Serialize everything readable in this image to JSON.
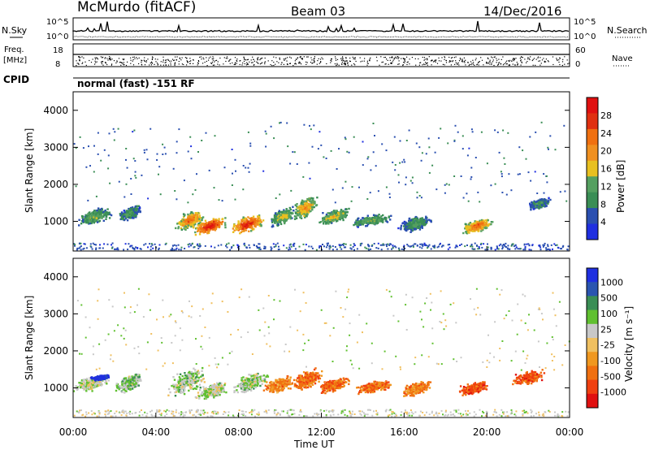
{
  "header": {
    "radar": "McMurdo (fitACF)",
    "beam": "Beam 03",
    "date": "14/Dec/2016"
  },
  "noise_panel": {
    "left_label": "N.Sky",
    "right_label": "N.Search",
    "tick_top": "10^5",
    "tick_bottom": "10^0"
  },
  "freq_panel": {
    "left_label": "Freq.",
    "left_unit": "[MHz]",
    "left_top": "18",
    "left_bottom": "8",
    "right_label": "Nave",
    "right_top": "60",
    "right_bottom": "0"
  },
  "cpid": {
    "label": "CPID",
    "mode": "normal (fast) -151 RF"
  },
  "colors": {
    "power": [
      "#1f2fe0",
      "#2a4fb0",
      "#3a8e55",
      "#55a060",
      "#e8c020",
      "#f09020",
      "#f07010",
      "#e03010",
      "#e01010"
    ],
    "velocity": [
      "#e01010",
      "#f04010",
      "#f07010",
      "#f09820",
      "#f0c060",
      "#c8c8c8",
      "#60c030",
      "#3a8e55",
      "#2a55b0",
      "#1f2fe0"
    ]
  },
  "chart_data": [
    {
      "type": "heatmap",
      "name": "power",
      "xlabel": "",
      "ylabel": "Slant Range [km]",
      "ylim": [
        200,
        4500
      ],
      "yticks": [
        "1000",
        "2000",
        "3000",
        "4000"
      ],
      "colorbar": {
        "label": "Power [dB]",
        "ticks": [
          "4",
          "8",
          "12",
          "16",
          "20",
          "24",
          "28"
        ],
        "range": [
          0,
          32
        ]
      },
      "blobs": [
        {
          "t": 1.0,
          "r": 1150,
          "dt": 0.9,
          "dr": 220,
          "v": 12
        },
        {
          "t": 2.7,
          "r": 1250,
          "dt": 0.6,
          "dr": 200,
          "v": 10
        },
        {
          "t": 5.6,
          "r": 1050,
          "dt": 0.8,
          "dr": 260,
          "v": 20
        },
        {
          "t": 6.6,
          "r": 900,
          "dt": 0.9,
          "dr": 220,
          "v": 27
        },
        {
          "t": 8.4,
          "r": 950,
          "dt": 0.9,
          "dr": 250,
          "v": 26
        },
        {
          "t": 10.1,
          "r": 1150,
          "dt": 0.7,
          "dr": 250,
          "v": 14
        },
        {
          "t": 11.2,
          "r": 1400,
          "dt": 0.7,
          "dr": 300,
          "v": 18
        },
        {
          "t": 12.6,
          "r": 1150,
          "dt": 0.8,
          "dr": 200,
          "v": 15
        },
        {
          "t": 14.4,
          "r": 1050,
          "dt": 1.2,
          "dr": 160,
          "v": 12
        },
        {
          "t": 16.5,
          "r": 950,
          "dt": 0.9,
          "dr": 220,
          "v": 10
        },
        {
          "t": 19.5,
          "r": 900,
          "dt": 0.8,
          "dr": 200,
          "v": 22
        },
        {
          "t": 22.5,
          "r": 1500,
          "dt": 0.6,
          "dr": 150,
          "v": 9
        }
      ]
    },
    {
      "type": "heatmap",
      "name": "velocity",
      "xlabel": "Time UT",
      "ylabel": "Slant Range [km]",
      "xticks": [
        "00:00",
        "04:00",
        "08:00",
        "12:00",
        "16:00",
        "20:00",
        "00:00"
      ],
      "xlim": [
        0,
        24
      ],
      "ylim": [
        200,
        4500
      ],
      "yticks": [
        "1000",
        "2000",
        "3000",
        "4000"
      ],
      "colorbar": {
        "label": "Velocity [m s⁻¹]",
        "ticks": [
          "1000",
          "500",
          "100",
          "25",
          "-25",
          "-100",
          "-500",
          "-1000"
        ]
      },
      "blobs": [
        {
          "t": 0.9,
          "r": 1150,
          "dt": 1.0,
          "dr": 220,
          "v": 0.55
        },
        {
          "t": 1.3,
          "r": 1300,
          "dt": 0.5,
          "dr": 70,
          "v": 0.98
        },
        {
          "t": 2.7,
          "r": 1150,
          "dt": 0.8,
          "dr": 260,
          "v": 0.62
        },
        {
          "t": 5.5,
          "r": 1200,
          "dt": 1.0,
          "dr": 350,
          "v": 0.6
        },
        {
          "t": 6.7,
          "r": 950,
          "dt": 0.9,
          "dr": 230,
          "v": 0.58
        },
        {
          "t": 8.5,
          "r": 1150,
          "dt": 1.0,
          "dr": 300,
          "v": 0.6
        },
        {
          "t": 9.9,
          "r": 1100,
          "dt": 0.8,
          "dr": 220,
          "v": 0.3
        },
        {
          "t": 11.3,
          "r": 1250,
          "dt": 0.8,
          "dr": 280,
          "v": 0.25
        },
        {
          "t": 12.6,
          "r": 1100,
          "dt": 0.8,
          "dr": 200,
          "v": 0.25
        },
        {
          "t": 14.5,
          "r": 1050,
          "dt": 1.0,
          "dr": 170,
          "v": 0.25
        },
        {
          "t": 16.6,
          "r": 1000,
          "dt": 0.8,
          "dr": 200,
          "v": 0.3
        },
        {
          "t": 19.3,
          "r": 1000,
          "dt": 0.8,
          "dr": 180,
          "v": 0.2
        },
        {
          "t": 22.0,
          "r": 1300,
          "dt": 0.9,
          "dr": 200,
          "v": 0.2
        }
      ]
    }
  ]
}
